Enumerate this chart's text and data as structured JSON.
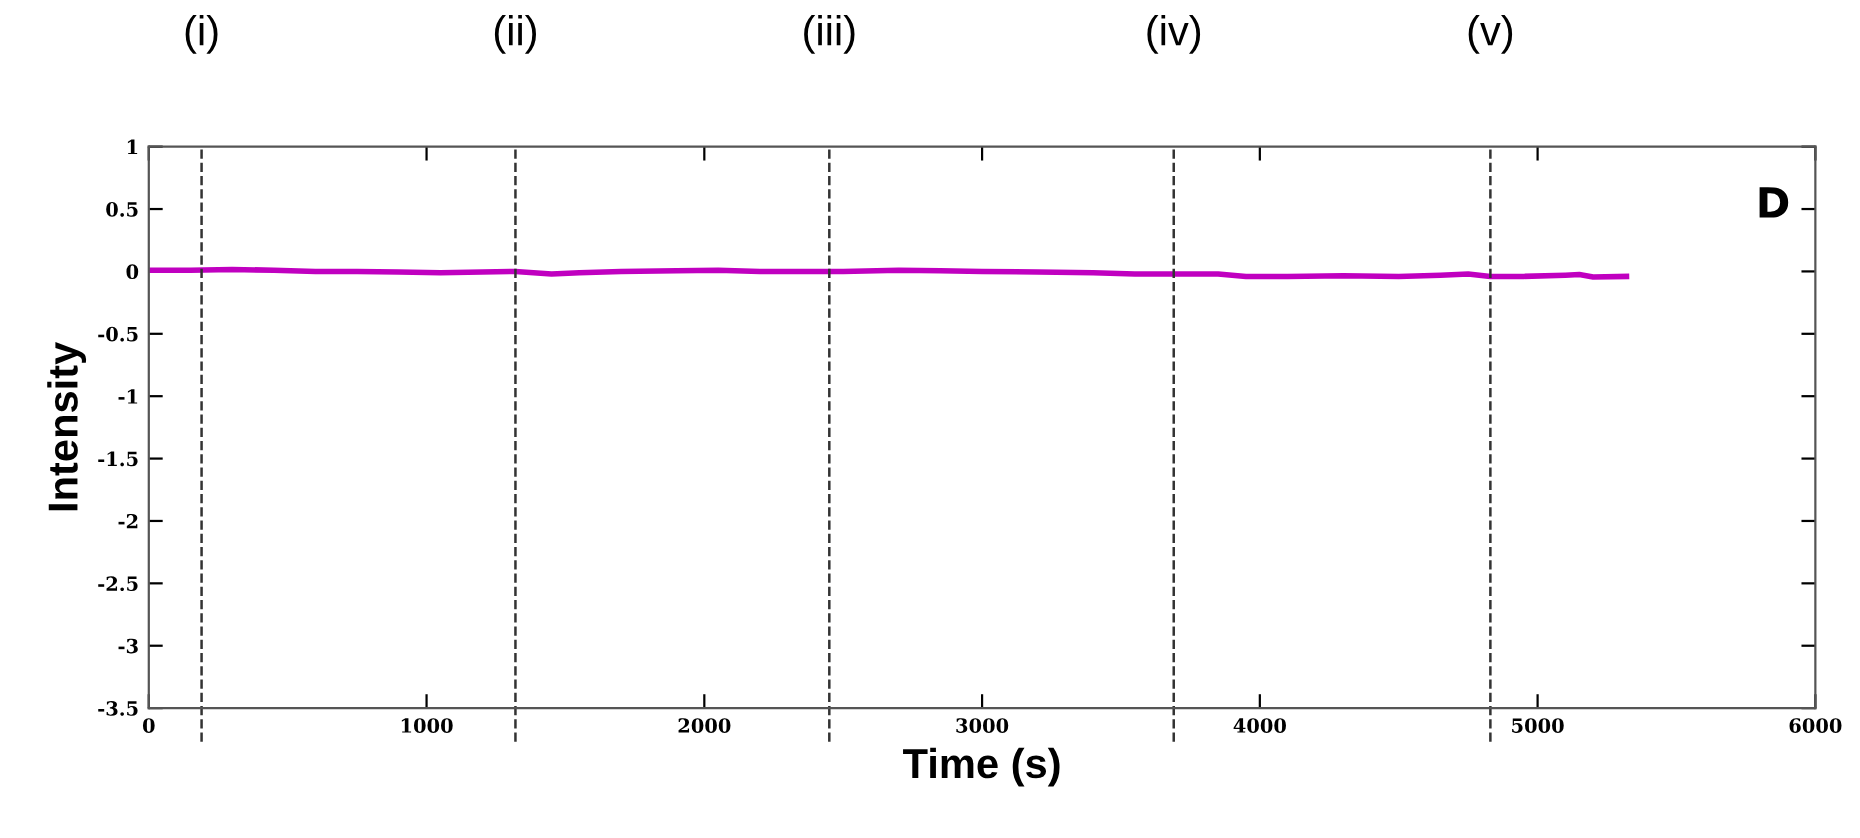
{
  "chart_data": {
    "type": "line",
    "xlabel": "Time (s)",
    "ylabel": "Intensity",
    "annotations": [
      "D"
    ],
    "x": [
      0,
      150,
      300,
      450,
      600,
      750,
      900,
      1050,
      1200,
      1320,
      1450,
      1550,
      1700,
      1900,
      2050,
      2200,
      2350,
      2500,
      2700,
      2850,
      3000,
      3200,
      3400,
      3550,
      3700,
      3850,
      3950,
      4100,
      4300,
      4500,
      4650,
      4750,
      4830,
      4950,
      5100,
      5150,
      5200,
      5320
    ],
    "series": [
      {
        "color": "#c000c0",
        "values": [
          0.01,
          0.01,
          0.015,
          0.01,
          0.0,
          0.0,
          -0.005,
          -0.01,
          -0.005,
          0.0,
          -0.02,
          -0.01,
          0.0,
          0.005,
          0.01,
          0.0,
          0.0,
          0.0,
          0.01,
          0.005,
          0.0,
          -0.005,
          -0.01,
          -0.02,
          -0.02,
          -0.02,
          -0.04,
          -0.04,
          -0.035,
          -0.04,
          -0.03,
          -0.02,
          -0.04,
          -0.04,
          -0.03,
          -0.025,
          -0.045,
          -0.04
        ]
      }
    ],
    "xlim": [
      0,
      6000
    ],
    "xticks": [
      0,
      1000,
      2000,
      3000,
      4000,
      5000,
      6000
    ],
    "ylim": [
      -3.5,
      1
    ],
    "yticks": [
      -3.5,
      -3,
      -2.5,
      -2,
      -1.5,
      -1,
      -0.5,
      0,
      0.5,
      1
    ],
    "ref_lines": [
      {
        "axis": "x",
        "value": 190,
        "label": "(i)",
        "color": "#333333",
        "line_style": "dashed"
      },
      {
        "axis": "x",
        "value": 1320,
        "label": "(ii)",
        "color": "#333333",
        "line_style": "dashed"
      },
      {
        "axis": "x",
        "value": 2450,
        "label": "(iii)",
        "color": "#333333",
        "line_style": "dashed"
      },
      {
        "axis": "x",
        "value": 3690,
        "label": "(iv)",
        "color": "#333333",
        "line_style": "dashed"
      },
      {
        "axis": "x",
        "value": 4830,
        "label": "(v)",
        "color": "#333333",
        "line_style": "dashed"
      }
    ],
    "grid": false,
    "legend": false,
    "marker": "none",
    "line_style": "solid"
  }
}
